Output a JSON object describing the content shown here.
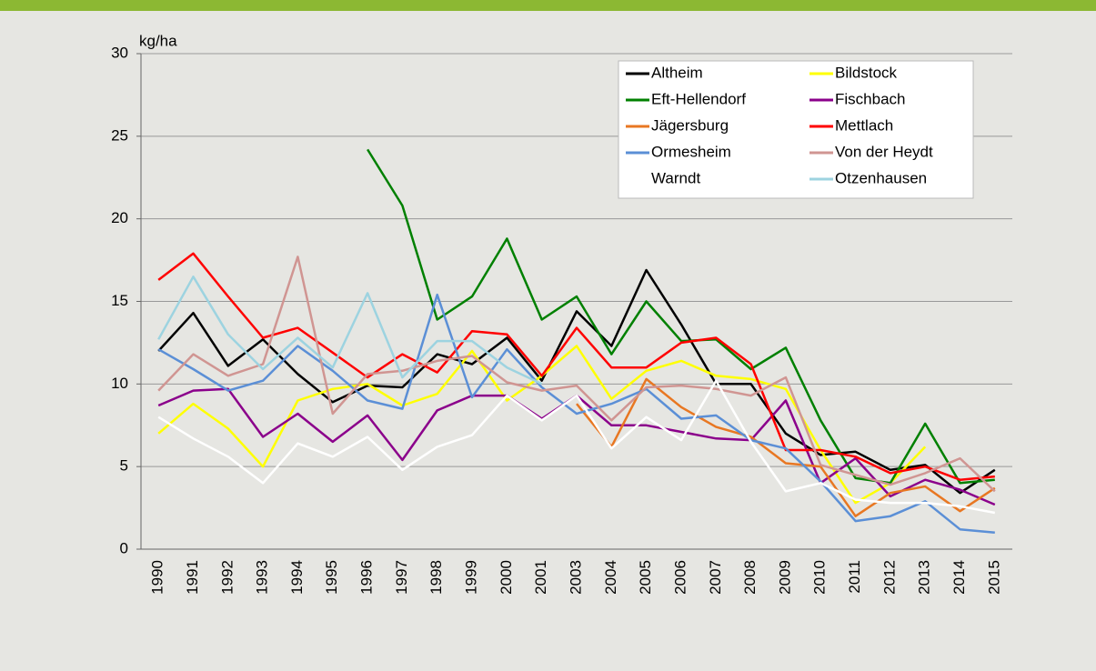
{
  "chart_data": {
    "type": "line",
    "y_label": "kg/ha",
    "categories": [
      "1990",
      "1991",
      "1992",
      "1993",
      "1994",
      "1995",
      "1996",
      "1997",
      "1998",
      "1999",
      "2000",
      "2001",
      "2003",
      "2004",
      "2005",
      "2006",
      "2007",
      "2008",
      "2009",
      "2010",
      "2011",
      "2012",
      "2013",
      "2014",
      "2015"
    ],
    "ylim": [
      0,
      30
    ],
    "yticks": [
      0,
      5,
      10,
      15,
      20,
      25,
      30
    ],
    "grid": true,
    "legend": "upper right",
    "series": [
      {
        "name": "Altheim",
        "color": "#000000",
        "values": [
          12.0,
          14.3,
          11.1,
          12.7,
          10.6,
          8.9,
          9.9,
          9.8,
          11.8,
          11.2,
          12.8,
          10.2,
          14.4,
          12.3,
          16.9,
          13.6,
          10.0,
          10.0,
          7.0,
          5.7,
          5.9,
          4.8,
          5.1,
          3.4,
          4.8
        ]
      },
      {
        "name": "Bildstock",
        "color": "#ffff00",
        "values": [
          7.0,
          8.8,
          7.3,
          5.0,
          9.0,
          9.7,
          10.0,
          8.7,
          9.4,
          12.0,
          9.0,
          10.5,
          12.3,
          9.1,
          10.8,
          11.4,
          10.5,
          10.3,
          9.7,
          6.0,
          2.8,
          4.0,
          6.2,
          null,
          null
        ]
      },
      {
        "name": "Eft-Hellendorf",
        "color": "#008000",
        "values": [
          null,
          null,
          null,
          null,
          null,
          null,
          24.2,
          20.8,
          13.9,
          15.3,
          18.8,
          13.9,
          15.3,
          11.8,
          15.0,
          12.6,
          12.7,
          10.9,
          12.2,
          7.8,
          4.3,
          4.0,
          7.6,
          4.0,
          4.2
        ]
      },
      {
        "name": "Fischbach",
        "color": "#8b008b",
        "values": [
          8.7,
          9.6,
          9.7,
          6.8,
          8.2,
          6.5,
          8.1,
          5.4,
          8.4,
          9.3,
          9.3,
          7.9,
          9.3,
          7.5,
          7.5,
          7.1,
          6.7,
          6.6,
          9.0,
          4.0,
          5.5,
          3.2,
          4.2,
          3.6,
          2.7
        ]
      },
      {
        "name": "Jägersburg",
        "color": "#e87722",
        "values": [
          null,
          null,
          null,
          null,
          null,
          null,
          null,
          null,
          null,
          null,
          null,
          null,
          8.8,
          6.2,
          10.3,
          8.6,
          7.4,
          6.8,
          5.2,
          5.0,
          2.0,
          3.4,
          3.8,
          2.3,
          3.7
        ]
      },
      {
        "name": "Mettlach",
        "color": "#ff0000",
        "values": [
          16.3,
          17.9,
          15.3,
          12.8,
          13.4,
          11.9,
          10.4,
          11.8,
          10.7,
          13.2,
          13.0,
          10.5,
          13.4,
          11.0,
          11.0,
          12.5,
          12.8,
          11.2,
          6.0,
          6.0,
          5.6,
          4.6,
          5.0,
          4.2,
          4.4
        ]
      },
      {
        "name": "Ormesheim",
        "color": "#5b8fd6",
        "values": [
          12.1,
          10.9,
          9.6,
          10.2,
          12.3,
          10.8,
          9.0,
          8.5,
          15.4,
          9.2,
          12.1,
          9.8,
          8.2,
          8.8,
          9.7,
          7.9,
          8.1,
          6.6,
          6.1,
          4.1,
          1.7,
          2.0,
          2.9,
          1.2,
          1.0
        ]
      },
      {
        "name": "Von der Heydt",
        "color": "#d09592",
        "values": [
          9.6,
          11.8,
          10.5,
          11.2,
          17.7,
          8.2,
          10.6,
          10.8,
          11.4,
          11.7,
          10.1,
          9.6,
          9.9,
          7.8,
          9.8,
          9.9,
          9.7,
          9.3,
          10.4,
          5.1,
          4.5,
          3.9,
          4.6,
          5.5,
          3.5
        ]
      },
      {
        "name": "Warndt",
        "color": "#ffffff",
        "values": [
          8.0,
          6.7,
          5.6,
          4.0,
          6.4,
          5.6,
          6.8,
          4.8,
          6.2,
          6.9,
          9.3,
          7.8,
          9.3,
          6.1,
          8.0,
          6.6,
          10.2,
          6.5,
          3.5,
          4.0,
          3.0,
          2.8,
          2.8,
          2.6,
          2.2
        ]
      },
      {
        "name": "Otzenhausen",
        "color": "#9dd3e0",
        "values": [
          12.7,
          16.5,
          13.0,
          10.9,
          12.8,
          11.0,
          15.5,
          10.4,
          12.6,
          12.6,
          11.0,
          10.0,
          null,
          null,
          null,
          null,
          null,
          null,
          null,
          null,
          null,
          null,
          null,
          null,
          null
        ]
      }
    ]
  }
}
